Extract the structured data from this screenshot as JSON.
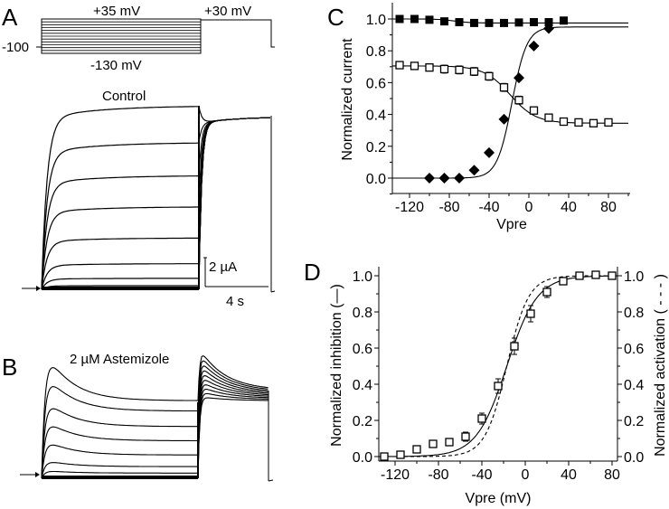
{
  "chart_data": [
    {
      "panel": "A",
      "type": "line",
      "title": "Control",
      "protocol": {
        "holding_label": "-100",
        "step_top_label": "+35 mV",
        "step_bottom_label": "-130 mV",
        "tail_label": "+30 mV",
        "n_steps": 12
      },
      "trace_levels_normalized": [
        1.0,
        0.8,
        0.62,
        0.45,
        0.28,
        0.14,
        0.06,
        0.02,
        0.01,
        0.0,
        0.0,
        0.0
      ],
      "tail_level_normalized": 0.94,
      "scale_bar": {
        "current_label": "2 µA",
        "time_label": "4 s"
      }
    },
    {
      "panel": "B",
      "type": "line",
      "title": "2 µM Astemizole",
      "trace_peaks_normalized": [
        1.0,
        0.82,
        0.62,
        0.46,
        0.3,
        0.14,
        0.06,
        0.02,
        0.0,
        0.0
      ],
      "trace_steady_normalized": [
        0.6,
        0.52,
        0.4,
        0.29,
        0.18,
        0.09,
        0.04,
        0.01,
        0.0,
        0.0
      ],
      "tail_peak_normalized": 0.98,
      "tail_steady_range": [
        0.6,
        0.68
      ]
    },
    {
      "panel": "C",
      "type": "scatter",
      "xlabel": "Vpre",
      "ylabel": "Normalized current",
      "xlim": [
        -137,
        100
      ],
      "ylim": [
        -0.1,
        1.1
      ],
      "xticks": [
        -120,
        -80,
        -40,
        0,
        40,
        80
      ],
      "xtick_labels": [
        "-120",
        "-80",
        "-40",
        "0",
        "40",
        "80"
      ],
      "yticks": [
        0.0,
        0.2,
        0.4,
        0.6,
        0.8,
        1.0
      ],
      "ytick_labels": [
        "0.0",
        "0.2",
        "0.4",
        "0.6",
        "0.8",
        "1.0"
      ],
      "series": [
        {
          "name": "filled-squares",
          "marker": "filled-square",
          "x": [
            -130,
            -115,
            -100,
            -85,
            -70,
            -55,
            -40,
            -25,
            -10,
            5,
            20,
            35
          ],
          "y": [
            1.0,
            1.0,
            0.995,
            0.985,
            0.98,
            0.975,
            0.975,
            0.975,
            0.978,
            0.98,
            0.98,
            0.99
          ],
          "fit": {
            "type": "boltzmann",
            "top": 1.0,
            "bottom": 0.975,
            "v_half": -75,
            "k": 8
          }
        },
        {
          "name": "open-squares",
          "marker": "open-square",
          "x": [
            -130,
            -115,
            -100,
            -85,
            -70,
            -55,
            -40,
            -25,
            -10,
            5,
            20,
            35,
            50,
            65,
            80
          ],
          "y": [
            0.71,
            0.705,
            0.695,
            0.685,
            0.68,
            0.67,
            0.64,
            0.57,
            0.49,
            0.425,
            0.38,
            0.355,
            0.35,
            0.345,
            0.35
          ],
          "err": [
            0.02,
            0.02,
            0.02,
            0.025,
            0.025,
            0.025,
            0.025,
            0.025,
            0.025,
            0.015,
            0.01,
            0.01,
            0.01,
            0.01,
            0.01
          ],
          "fit": {
            "type": "boltzmann",
            "top": 0.705,
            "bottom": 0.345,
            "v_half": -19,
            "k": 13
          }
        },
        {
          "name": "diamonds",
          "marker": "filled-diamond",
          "x": [
            -100,
            -85,
            -70,
            -55,
            -40,
            -25,
            -10,
            5,
            20
          ],
          "y": [
            0.0,
            0.0,
            0.0,
            0.05,
            0.16,
            0.37,
            0.63,
            0.83,
            0.94
          ],
          "fit": {
            "type": "boltzmann",
            "top": 0.95,
            "bottom": 0.0,
            "v_half": -17,
            "k": 7.5
          }
        }
      ]
    },
    {
      "panel": "D",
      "type": "scatter",
      "xlabel": "Vpre (mV)",
      "ylabel": "Normalized inhibition (—)",
      "ylabel_right": "Normalized activation ( - - - )",
      "xlim": [
        -135,
        85
      ],
      "ylim": [
        -0.025,
        1.05
      ],
      "xticks": [
        -120,
        -80,
        -40,
        0,
        40,
        80
      ],
      "xtick_labels": [
        "-120",
        "-80",
        "-40",
        "0",
        "40",
        "80"
      ],
      "yticks": [
        0.0,
        0.2,
        0.4,
        0.6,
        0.8,
        1.0
      ],
      "ytick_labels": [
        "0.0",
        "0.2",
        "0.4",
        "0.6",
        "0.8",
        "1.0"
      ],
      "series": [
        {
          "name": "inhibition",
          "marker": "open-square",
          "x": [
            -130,
            -115,
            -100,
            -85,
            -70,
            -55,
            -40,
            -25,
            -10,
            5,
            20,
            35,
            50,
            65,
            80
          ],
          "y": [
            0.0,
            0.01,
            0.04,
            0.07,
            0.08,
            0.11,
            0.21,
            0.39,
            0.61,
            0.79,
            0.91,
            0.97,
            1.0,
            1.005,
            1.0
          ],
          "err": [
            0.005,
            0.01,
            0.01,
            0.015,
            0.02,
            0.025,
            0.03,
            0.04,
            0.045,
            0.045,
            0.03,
            0.02,
            0.01,
            0.01,
            0.005
          ],
          "fit": {
            "type": "boltzmann",
            "style": "solid",
            "top": 1.0,
            "bottom": 0.0,
            "v_half": -17,
            "k": 14
          }
        },
        {
          "name": "activation",
          "fit": {
            "type": "boltzmann",
            "style": "dashed",
            "top": 1.0,
            "bottom": 0.0,
            "v_half": -17,
            "k": 10
          }
        }
      ]
    }
  ],
  "panel_labels": {
    "a": "A",
    "b": "B",
    "c": "C",
    "d": "D"
  }
}
